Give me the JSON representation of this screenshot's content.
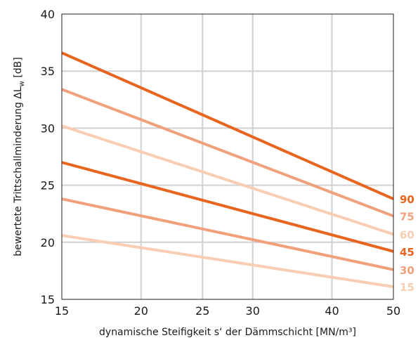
{
  "chart_data": {
    "type": "line",
    "x_scale": "log",
    "grid": true,
    "xlabel": "dynamische Steifigkeit s‘ der Dämmschicht [MN/m³]",
    "ylabel_prefix": "bewertete Trittschallminderung ΔL",
    "ylabel_sub": "w",
    "ylabel_suffix": " [dB]",
    "xlim": [
      15,
      50
    ],
    "ylim": [
      15,
      40
    ],
    "x_ticks": [
      15,
      20,
      25,
      30,
      40,
      50
    ],
    "y_ticks": [
      15,
      20,
      25,
      30,
      35,
      40
    ],
    "x": [
      15,
      50
    ],
    "series": [
      {
        "name": "90",
        "values": [
          36.6,
          23.8
        ],
        "color": "#e8651f"
      },
      {
        "name": "75",
        "values": [
          33.4,
          22.3
        ],
        "color": "#f0a07a"
      },
      {
        "name": "60",
        "values": [
          30.2,
          20.7
        ],
        "color": "#f8cdb2"
      },
      {
        "name": "45",
        "values": [
          27.0,
          19.2
        ],
        "color": "#e8651f"
      },
      {
        "name": "30",
        "values": [
          23.8,
          17.6
        ],
        "color": "#f0a07a"
      },
      {
        "name": "15",
        "values": [
          20.6,
          16.1
        ],
        "color": "#f8cdb2"
      }
    ]
  }
}
